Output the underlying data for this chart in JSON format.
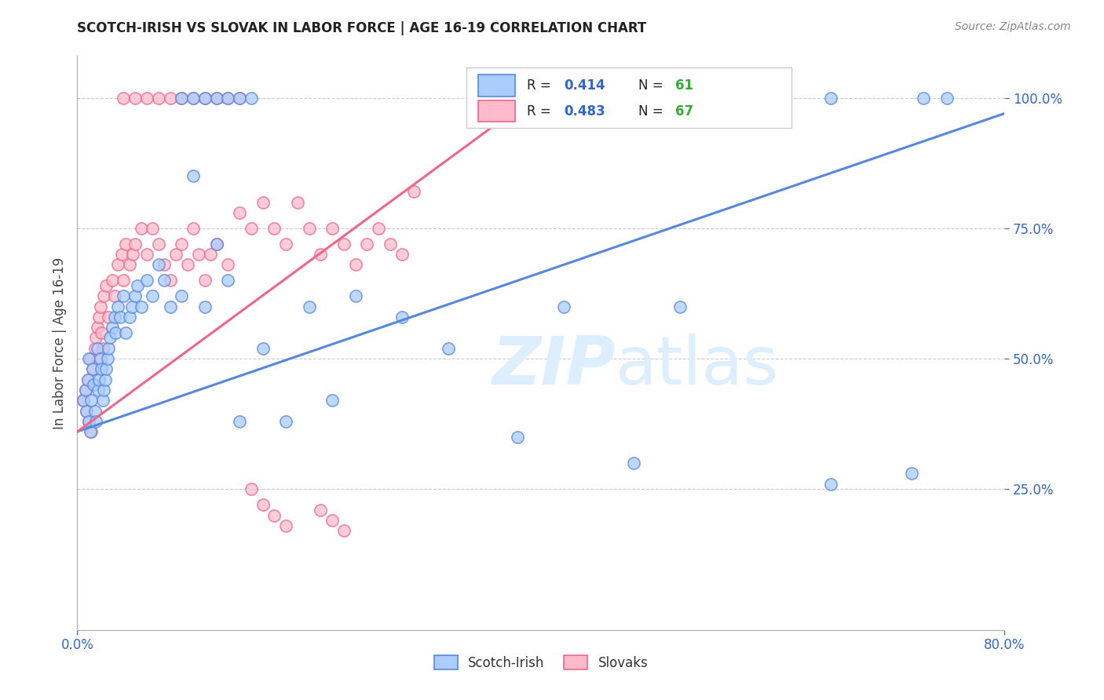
{
  "title": "SCOTCH-IRISH VS SLOVAK IN LABOR FORCE | AGE 16-19 CORRELATION CHART",
  "source": "Source: ZipAtlas.com",
  "ylabel": "In Labor Force | Age 16-19",
  "xlim": [
    0.0,
    0.8
  ],
  "ylim": [
    -0.02,
    1.08
  ],
  "x_ticks": [
    0.0,
    0.8
  ],
  "x_tick_labels": [
    "0.0%",
    "80.0%"
  ],
  "y_tick_labels": [
    "25.0%",
    "50.0%",
    "75.0%",
    "100.0%"
  ],
  "y_ticks": [
    0.25,
    0.5,
    0.75,
    1.0
  ],
  "scotch_color": "#5588dd",
  "scotch_fill": "#aaccff",
  "slovak_color": "#ee6688",
  "slovak_fill": "#ffbbcc",
  "R_scotch": 0.414,
  "N_scotch": 61,
  "R_slovak": 0.483,
  "N_slovak": 67,
  "scotch_line_x0": 0.0,
  "scotch_line_x1": 0.8,
  "scotch_line_y0": 0.36,
  "scotch_line_y1": 0.97,
  "slovak_line_x0": 0.0,
  "slovak_line_x1": 0.38,
  "slovak_line_y0": 0.36,
  "slovak_line_y1": 0.98,
  "scotch_x": [
    0.005,
    0.007,
    0.008,
    0.009,
    0.01,
    0.01,
    0.011,
    0.012,
    0.013,
    0.014,
    0.015,
    0.016,
    0.017,
    0.018,
    0.019,
    0.02,
    0.021,
    0.022,
    0.023,
    0.024,
    0.025,
    0.026,
    0.027,
    0.028,
    0.03,
    0.032,
    0.033,
    0.035,
    0.037,
    0.04,
    0.042,
    0.045,
    0.047,
    0.05,
    0.052,
    0.055,
    0.06,
    0.065,
    0.07,
    0.075,
    0.08,
    0.09,
    0.1,
    0.11,
    0.12,
    0.13,
    0.14,
    0.16,
    0.18,
    0.2,
    0.22,
    0.24,
    0.28,
    0.32,
    0.38,
    0.42,
    0.48,
    0.52,
    0.65,
    0.72,
    0.75
  ],
  "scotch_y": [
    0.42,
    0.44,
    0.4,
    0.46,
    0.38,
    0.5,
    0.36,
    0.42,
    0.48,
    0.45,
    0.4,
    0.38,
    0.52,
    0.44,
    0.46,
    0.5,
    0.48,
    0.42,
    0.44,
    0.46,
    0.48,
    0.5,
    0.52,
    0.54,
    0.56,
    0.58,
    0.55,
    0.6,
    0.58,
    0.62,
    0.55,
    0.58,
    0.6,
    0.62,
    0.64,
    0.6,
    0.65,
    0.62,
    0.68,
    0.65,
    0.6,
    0.62,
    0.85,
    0.6,
    0.72,
    0.65,
    0.38,
    0.52,
    0.38,
    0.6,
    0.42,
    0.62,
    0.58,
    0.52,
    0.35,
    0.6,
    0.3,
    0.6,
    0.26,
    0.28,
    1.0
  ],
  "scotch_top_x": [
    0.09,
    0.1,
    0.11,
    0.12,
    0.13,
    0.14,
    0.15,
    0.65,
    0.73
  ],
  "scotch_top_y": [
    1.0,
    1.0,
    1.0,
    1.0,
    1.0,
    1.0,
    1.0,
    1.0,
    1.0
  ],
  "slovak_x": [
    0.005,
    0.007,
    0.008,
    0.009,
    0.01,
    0.011,
    0.012,
    0.013,
    0.014,
    0.015,
    0.016,
    0.017,
    0.018,
    0.019,
    0.02,
    0.021,
    0.022,
    0.023,
    0.025,
    0.027,
    0.03,
    0.032,
    0.035,
    0.038,
    0.04,
    0.042,
    0.045,
    0.048,
    0.05,
    0.055,
    0.06,
    0.065,
    0.07,
    0.075,
    0.08,
    0.085,
    0.09,
    0.095,
    0.1,
    0.105,
    0.11,
    0.115,
    0.12,
    0.13,
    0.14,
    0.15,
    0.16,
    0.17,
    0.18,
    0.19,
    0.2,
    0.21,
    0.22,
    0.23,
    0.24,
    0.25,
    0.15,
    0.16,
    0.17,
    0.18,
    0.21,
    0.22,
    0.23,
    0.26,
    0.27,
    0.28,
    0.29
  ],
  "slovak_y": [
    0.42,
    0.44,
    0.4,
    0.46,
    0.38,
    0.5,
    0.36,
    0.48,
    0.45,
    0.52,
    0.54,
    0.56,
    0.5,
    0.58,
    0.6,
    0.55,
    0.52,
    0.62,
    0.64,
    0.58,
    0.65,
    0.62,
    0.68,
    0.7,
    0.65,
    0.72,
    0.68,
    0.7,
    0.72,
    0.75,
    0.7,
    0.75,
    0.72,
    0.68,
    0.65,
    0.7,
    0.72,
    0.68,
    0.75,
    0.7,
    0.65,
    0.7,
    0.72,
    0.68,
    0.78,
    0.75,
    0.8,
    0.75,
    0.72,
    0.8,
    0.75,
    0.7,
    0.75,
    0.72,
    0.68,
    0.72,
    0.25,
    0.22,
    0.2,
    0.18,
    0.21,
    0.19,
    0.17,
    0.75,
    0.72,
    0.7,
    0.82
  ],
  "slovak_top_x": [
    0.04,
    0.05,
    0.06,
    0.07,
    0.08,
    0.09,
    0.1,
    0.11,
    0.12,
    0.13,
    0.14
  ],
  "slovak_top_y": [
    1.0,
    1.0,
    1.0,
    1.0,
    1.0,
    1.0,
    1.0,
    1.0,
    1.0,
    1.0,
    1.0
  ]
}
